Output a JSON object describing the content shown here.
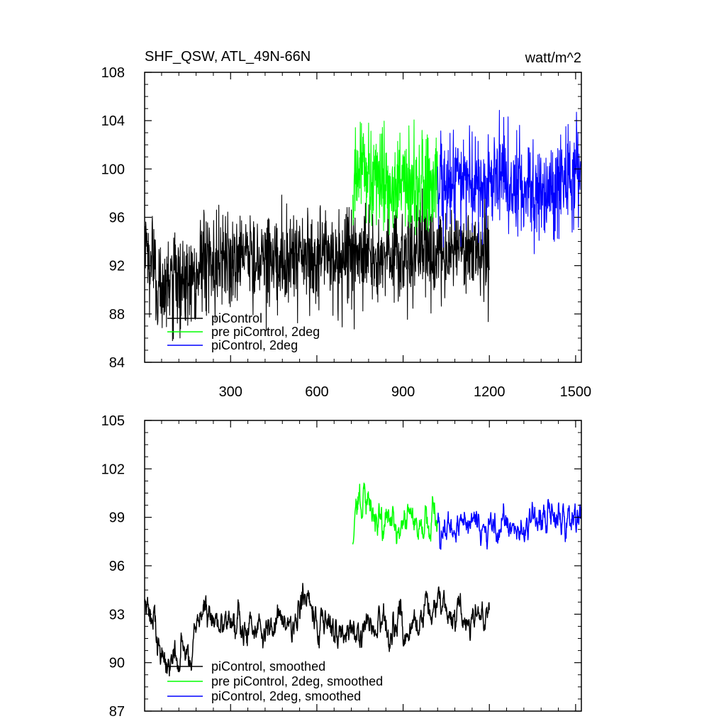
{
  "chart_data": [
    {
      "type": "line",
      "title": "SHF_QSW, ATL_49N-66N",
      "units": "watt/m^2",
      "xlabel": "",
      "ylabel": "",
      "xlim": [
        1,
        1520
      ],
      "ylim": [
        84,
        108
      ],
      "x_ticks": [
        300,
        600,
        900,
        1200,
        1500
      ],
      "x_tick_labels": [
        "300",
        "600",
        "900",
        "1200",
        "1500"
      ],
      "y_ticks": [
        84,
        88,
        92,
        96,
        100,
        104,
        108
      ],
      "y_tick_labels": [
        "84",
        "88",
        "92",
        "96",
        "100",
        "104",
        "108"
      ],
      "legend_position": "bottom-left",
      "series": [
        {
          "name": "piControl",
          "color": "#000000",
          "x_start": 1,
          "x_end": 1200,
          "noise": "high",
          "anchors": [
            [
              1,
              93
            ],
            [
              40,
              91.5
            ],
            [
              60,
              90
            ],
            [
              110,
              90.5
            ],
            [
              150,
              90.5
            ],
            [
              180,
              91.2
            ],
            [
              200,
              92.6
            ],
            [
              300,
              92.7
            ],
            [
              400,
              92.8
            ],
            [
              500,
              92.4
            ],
            [
              600,
              92.6
            ],
            [
              700,
              92.6
            ],
            [
              760,
              93.3
            ],
            [
              820,
              92.5
            ],
            [
              880,
              92.8
            ],
            [
              950,
              92.5
            ],
            [
              1000,
              93
            ],
            [
              1100,
              93.6
            ],
            [
              1200,
              92.8
            ]
          ]
        },
        {
          "name": "pre piControl, 2deg",
          "color": "#00ff00",
          "x_start": 725,
          "x_end": 1020,
          "noise": "high",
          "anchors": [
            [
              725,
              98.5
            ],
            [
              760,
              100.2
            ],
            [
              800,
              99.3
            ],
            [
              850,
              99
            ],
            [
              900,
              98.3
            ],
            [
              950,
              98.5
            ],
            [
              1020,
              98.6
            ]
          ]
        },
        {
          "name": "piControl, 2deg",
          "color": "#0000ff",
          "x_start": 1020,
          "x_end": 1520,
          "noise": "high",
          "anchors": [
            [
              1020,
              98.5
            ],
            [
              1100,
              98.8
            ],
            [
              1200,
              98.9
            ],
            [
              1250,
              99.6
            ],
            [
              1300,
              98.5
            ],
            [
              1400,
              98.7
            ],
            [
              1520,
              99.3
            ]
          ]
        }
      ]
    },
    {
      "type": "line",
      "title": "",
      "xlabel": "",
      "ylabel": "",
      "xlim": [
        1,
        1520
      ],
      "ylim": [
        87,
        105
      ],
      "x_ticks": [
        300,
        600,
        900,
        1200,
        1500
      ],
      "y_ticks": [
        87,
        90,
        93,
        96,
        99,
        102,
        105
      ],
      "y_tick_labels": [
        "87",
        "90",
        "93",
        "96",
        "99",
        "102",
        "105"
      ],
      "legend_position": "bottom-left",
      "series": [
        {
          "name": "piControl, smoothed",
          "color": "#000000",
          "x_start": 1,
          "x_end": 1200,
          "noise": "low",
          "anchors": [
            [
              1,
              92.9
            ],
            [
              20,
              92.8
            ],
            [
              40,
              92.6
            ],
            [
              60,
              90.2
            ],
            [
              80,
              89.8
            ],
            [
              100,
              90.4
            ],
            [
              130,
              90.8
            ],
            [
              160,
              90.3
            ],
            [
              175,
              91.5
            ],
            [
              190,
              93
            ],
            [
              300,
              92.5
            ],
            [
              400,
              92.4
            ],
            [
              450,
              92.6
            ],
            [
              500,
              92.7
            ],
            [
              550,
              93.6
            ],
            [
              600,
              92.6
            ],
            [
              700,
              92
            ],
            [
              750,
              92
            ],
            [
              800,
              92.3
            ],
            [
              850,
              91.8
            ],
            [
              900,
              92.2
            ],
            [
              950,
              92
            ],
            [
              1000,
              93.3
            ],
            [
              1050,
              93.8
            ],
            [
              1100,
              93.2
            ],
            [
              1150,
              93.2
            ],
            [
              1200,
              93
            ]
          ]
        },
        {
          "name": "pre piControl, 2deg, smoothed",
          "color": "#00ff00",
          "x_start": 725,
          "x_end": 1020,
          "noise": "low",
          "anchors": [
            [
              725,
              98
            ],
            [
              740,
              99.8
            ],
            [
              760,
              100.8
            ],
            [
              780,
              100
            ],
            [
              800,
              99.3
            ],
            [
              850,
              98.7
            ],
            [
              900,
              98.4
            ],
            [
              950,
              98.3
            ],
            [
              1020,
              98.5
            ]
          ]
        },
        {
          "name": "piControl, 2deg, smoothed",
          "color": "#0000ff",
          "x_start": 1020,
          "x_end": 1520,
          "noise": "low",
          "anchors": [
            [
              1020,
              98.6
            ],
            [
              1060,
              98.2
            ],
            [
              1100,
              98.6
            ],
            [
              1150,
              98.6
            ],
            [
              1200,
              98.6
            ],
            [
              1250,
              99
            ],
            [
              1300,
              98
            ],
            [
              1350,
              99
            ],
            [
              1400,
              98.5
            ],
            [
              1450,
              98.8
            ],
            [
              1500,
              99.4
            ],
            [
              1520,
              99.2
            ]
          ]
        }
      ]
    }
  ]
}
